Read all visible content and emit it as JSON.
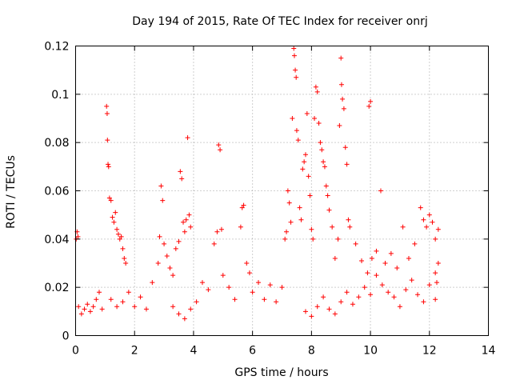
{
  "chart_data": {
    "type": "scatter",
    "title": "Day 194 of 2015, Rate Of TEC Index for receiver onrj",
    "xlabel": "GPS time / hours",
    "ylabel": "ROTI / TECUs",
    "xlim": [
      0,
      14
    ],
    "ylim": [
      0,
      0.12
    ],
    "xticks": [
      0,
      2,
      4,
      6,
      8,
      10,
      12,
      14
    ],
    "xtick_labels": [
      "0",
      "2",
      "4",
      "6",
      "8",
      "10",
      "12",
      "14"
    ],
    "yticks": [
      0,
      0.02,
      0.04,
      0.06,
      0.08,
      0.1,
      0.12
    ],
    "ytick_labels": [
      "0",
      "0.02",
      "0.04",
      "0.06",
      "0.08",
      "0.1",
      "0.12"
    ],
    "grid": true,
    "marker": "+",
    "color": "#ff0000",
    "series": [
      {
        "name": "ROTI",
        "points": [
          [
            0.02,
            0.04
          ],
          [
            0.05,
            0.043
          ],
          [
            0.08,
            0.041
          ],
          [
            0.1,
            0.012
          ],
          [
            0.2,
            0.009
          ],
          [
            0.3,
            0.011
          ],
          [
            0.4,
            0.013
          ],
          [
            0.5,
            0.01
          ],
          [
            0.6,
            0.012
          ],
          [
            0.7,
            0.015
          ],
          [
            0.8,
            0.018
          ],
          [
            0.9,
            0.011
          ],
          [
            1.05,
            0.095
          ],
          [
            1.07,
            0.092
          ],
          [
            1.08,
            0.081
          ],
          [
            1.1,
            0.071
          ],
          [
            1.12,
            0.07
          ],
          [
            1.15,
            0.057
          ],
          [
            1.2,
            0.056
          ],
          [
            1.25,
            0.049
          ],
          [
            1.3,
            0.047
          ],
          [
            1.35,
            0.051
          ],
          [
            1.4,
            0.044
          ],
          [
            1.45,
            0.042
          ],
          [
            1.5,
            0.04
          ],
          [
            1.55,
            0.041
          ],
          [
            1.6,
            0.036
          ],
          [
            1.65,
            0.032
          ],
          [
            1.7,
            0.03
          ],
          [
            1.2,
            0.015
          ],
          [
            1.4,
            0.012
          ],
          [
            1.6,
            0.014
          ],
          [
            1.8,
            0.018
          ],
          [
            2.0,
            0.012
          ],
          [
            2.2,
            0.016
          ],
          [
            2.4,
            0.011
          ],
          [
            2.6,
            0.022
          ],
          [
            2.8,
            0.03
          ],
          [
            2.85,
            0.041
          ],
          [
            2.9,
            0.062
          ],
          [
            2.95,
            0.056
          ],
          [
            3.0,
            0.038
          ],
          [
            3.1,
            0.033
          ],
          [
            3.2,
            0.028
          ],
          [
            3.3,
            0.025
          ],
          [
            3.4,
            0.036
          ],
          [
            3.5,
            0.039
          ],
          [
            3.55,
            0.068
          ],
          [
            3.6,
            0.065
          ],
          [
            3.65,
            0.047
          ],
          [
            3.7,
            0.043
          ],
          [
            3.75,
            0.048
          ],
          [
            3.8,
            0.082
          ],
          [
            3.85,
            0.05
          ],
          [
            3.9,
            0.045
          ],
          [
            3.3,
            0.012
          ],
          [
            3.5,
            0.009
          ],
          [
            3.7,
            0.007
          ],
          [
            3.9,
            0.011
          ],
          [
            4.1,
            0.014
          ],
          [
            4.3,
            0.022
          ],
          [
            4.5,
            0.019
          ],
          [
            4.7,
            0.038
          ],
          [
            4.8,
            0.043
          ],
          [
            4.85,
            0.079
          ],
          [
            4.9,
            0.077
          ],
          [
            4.95,
            0.044
          ],
          [
            5.0,
            0.025
          ],
          [
            5.2,
            0.02
          ],
          [
            5.4,
            0.015
          ],
          [
            5.6,
            0.045
          ],
          [
            5.65,
            0.053
          ],
          [
            5.7,
            0.054
          ],
          [
            5.8,
            0.03
          ],
          [
            5.9,
            0.026
          ],
          [
            6.0,
            0.018
          ],
          [
            6.2,
            0.022
          ],
          [
            6.4,
            0.015
          ],
          [
            6.6,
            0.021
          ],
          [
            6.8,
            0.014
          ],
          [
            7.0,
            0.02
          ],
          [
            7.1,
            0.04
          ],
          [
            7.15,
            0.043
          ],
          [
            7.2,
            0.06
          ],
          [
            7.25,
            0.055
          ],
          [
            7.3,
            0.047
          ],
          [
            7.35,
            0.09
          ],
          [
            7.4,
            0.119
          ],
          [
            7.42,
            0.116
          ],
          [
            7.45,
            0.11
          ],
          [
            7.48,
            0.107
          ],
          [
            7.5,
            0.085
          ],
          [
            7.55,
            0.081
          ],
          [
            7.6,
            0.053
          ],
          [
            7.65,
            0.048
          ],
          [
            7.7,
            0.069
          ],
          [
            7.75,
            0.072
          ],
          [
            7.8,
            0.075
          ],
          [
            7.85,
            0.092
          ],
          [
            7.9,
            0.066
          ],
          [
            7.95,
            0.058
          ],
          [
            8.0,
            0.044
          ],
          [
            8.05,
            0.04
          ],
          [
            8.1,
            0.09
          ],
          [
            8.15,
            0.103
          ],
          [
            8.2,
            0.101
          ],
          [
            8.25,
            0.088
          ],
          [
            8.3,
            0.08
          ],
          [
            8.35,
            0.077
          ],
          [
            8.4,
            0.072
          ],
          [
            8.45,
            0.07
          ],
          [
            8.5,
            0.062
          ],
          [
            8.55,
            0.058
          ],
          [
            8.6,
            0.052
          ],
          [
            8.7,
            0.045
          ],
          [
            8.8,
            0.032
          ],
          [
            8.9,
            0.04
          ],
          [
            8.95,
            0.087
          ],
          [
            9.0,
            0.115
          ],
          [
            9.02,
            0.104
          ],
          [
            9.05,
            0.098
          ],
          [
            9.1,
            0.094
          ],
          [
            9.15,
            0.078
          ],
          [
            9.2,
            0.071
          ],
          [
            9.25,
            0.048
          ],
          [
            9.3,
            0.045
          ],
          [
            9.5,
            0.038
          ],
          [
            9.7,
            0.031
          ],
          [
            9.9,
            0.026
          ],
          [
            9.95,
            0.095
          ],
          [
            10.0,
            0.097
          ],
          [
            10.05,
            0.032
          ],
          [
            10.2,
            0.035
          ],
          [
            10.35,
            0.06
          ],
          [
            10.5,
            0.03
          ],
          [
            10.7,
            0.034
          ],
          [
            10.9,
            0.028
          ],
          [
            11.1,
            0.045
          ],
          [
            11.3,
            0.032
          ],
          [
            11.5,
            0.038
          ],
          [
            11.7,
            0.053
          ],
          [
            11.8,
            0.048
          ],
          [
            11.9,
            0.045
          ],
          [
            12.0,
            0.05
          ],
          [
            12.1,
            0.047
          ],
          [
            12.2,
            0.04
          ],
          [
            12.3,
            0.044
          ],
          [
            12.3,
            0.03
          ],
          [
            12.25,
            0.022
          ],
          [
            12.2,
            0.015
          ],
          [
            7.8,
            0.01
          ],
          [
            8.0,
            0.008
          ],
          [
            8.2,
            0.012
          ],
          [
            8.4,
            0.016
          ],
          [
            8.6,
            0.011
          ],
          [
            8.8,
            0.009
          ],
          [
            9.0,
            0.014
          ],
          [
            9.2,
            0.018
          ],
          [
            9.4,
            0.013
          ],
          [
            9.6,
            0.016
          ],
          [
            9.8,
            0.02
          ],
          [
            10.0,
            0.017
          ],
          [
            10.2,
            0.025
          ],
          [
            10.4,
            0.021
          ],
          [
            10.6,
            0.018
          ],
          [
            10.8,
            0.016
          ],
          [
            11.0,
            0.012
          ],
          [
            11.2,
            0.019
          ],
          [
            11.4,
            0.023
          ],
          [
            11.6,
            0.017
          ],
          [
            11.8,
            0.014
          ],
          [
            12.0,
            0.021
          ],
          [
            12.2,
            0.026
          ]
        ]
      }
    ]
  }
}
